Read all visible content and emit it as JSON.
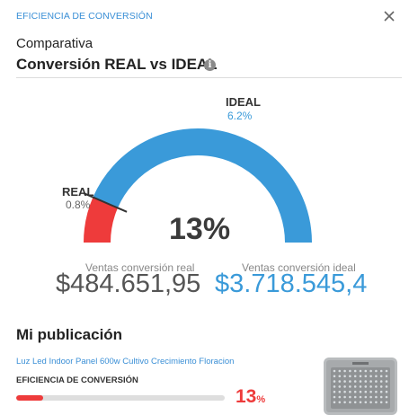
{
  "header": {
    "title": "EFICIENCIA DE CONVERSIÓN",
    "close_icon": "close-icon"
  },
  "comparison": {
    "subtitle": "Comparativa",
    "title": "Conversión REAL vs IDEAL",
    "info_glyph": "i",
    "gauge": {
      "ideal_label": "IDEAL",
      "ideal_value": "6.2%",
      "real_label": "REAL",
      "real_value": "0.8%",
      "center_value": "13%",
      "fill_fraction": 0.13,
      "colors": {
        "ideal": "#3a9ad9",
        "real": "#ee3b3b",
        "needle": "#333333"
      }
    },
    "real_stat": {
      "label": "Ventas conversión real",
      "value": "$484.651,95"
    },
    "ideal_stat": {
      "label": "Ventas conversión ideal",
      "value": "$3.718.545,4"
    }
  },
  "publication": {
    "section_title": "Mi publicación",
    "product_name": "Luz Led Indoor Panel 600w Cultivo Crecimiento Floracion",
    "efficiency_label": "EFICIENCIA DE CONVERSIÓN",
    "efficiency_number": "13",
    "efficiency_sign": "%",
    "efficiency_fraction": 0.13,
    "image_icon": "led-panel-image"
  }
}
